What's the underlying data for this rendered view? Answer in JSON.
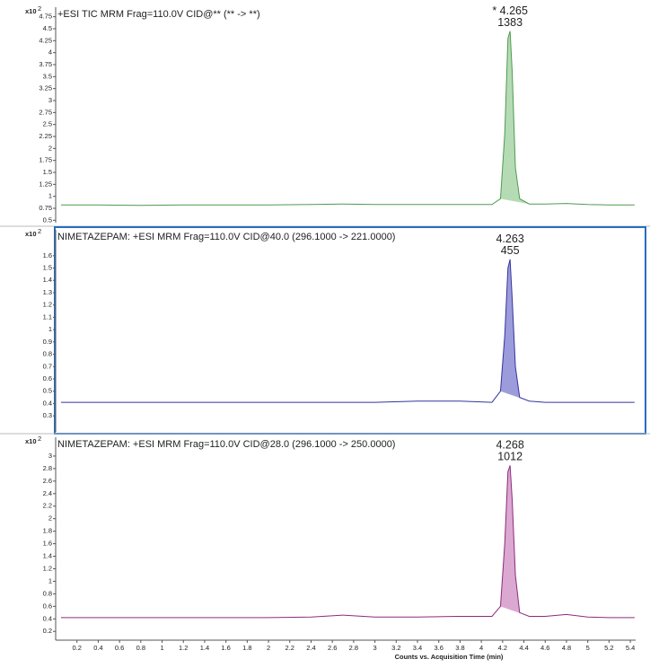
{
  "chart_data": [
    {
      "type": "line",
      "title": "+ESI TIC MRM Frag=110.0V CID@** (** -> **)",
      "y_multiplier": {
        "base": "x10",
        "exponent": "2"
      },
      "x": [
        0.05,
        0.4,
        0.8,
        1.2,
        1.6,
        2.0,
        2.4,
        2.7,
        3.0,
        3.4,
        3.8,
        4.1,
        4.18,
        4.22,
        4.25,
        4.27,
        4.29,
        4.32,
        4.36,
        4.45,
        4.6,
        4.8,
        5.0,
        5.2,
        5.44
      ],
      "series": [
        {
          "color": "#4f9a4f",
          "fill": "#b5dbb5",
          "values": [
            0.82,
            0.82,
            0.81,
            0.82,
            0.82,
            0.82,
            0.83,
            0.84,
            0.83,
            0.83,
            0.83,
            0.83,
            0.95,
            2.3,
            4.3,
            4.45,
            3.6,
            1.6,
            0.95,
            0.84,
            0.84,
            0.85,
            0.83,
            0.82,
            0.82
          ]
        }
      ],
      "xlim": [
        0,
        5.45
      ],
      "ylim": [
        0.45,
        4.95
      ],
      "yticks": [
        0.5,
        0.75,
        1,
        1.25,
        1.5,
        1.75,
        2,
        2.25,
        2.5,
        2.75,
        3,
        3.25,
        3.5,
        3.75,
        4,
        4.25,
        4.5,
        4.75
      ],
      "annotations": [
        "* 4.265",
        "1383"
      ]
    },
    {
      "type": "line",
      "title": "NIMETAZEPAM: +ESI MRM Frag=110.0V CID@40.0 (296.1000 -> 221.0000)",
      "y_multiplier": {
        "base": "x10",
        "exponent": "2"
      },
      "x": [
        0.05,
        0.4,
        0.8,
        1.2,
        1.6,
        2.0,
        2.4,
        2.7,
        3.0,
        3.4,
        3.8,
        4.1,
        4.18,
        4.22,
        4.25,
        4.27,
        4.29,
        4.32,
        4.36,
        4.45,
        4.6,
        4.8,
        5.0,
        5.2,
        5.44
      ],
      "series": [
        {
          "color": "#34349c",
          "fill": "#9c9cdc",
          "values": [
            0.41,
            0.41,
            0.41,
            0.41,
            0.41,
            0.41,
            0.41,
            0.41,
            0.41,
            0.42,
            0.42,
            0.41,
            0.5,
            0.95,
            1.5,
            1.57,
            1.25,
            0.7,
            0.45,
            0.42,
            0.41,
            0.41,
            0.41,
            0.41,
            0.41
          ]
        }
      ],
      "xlim": [
        0,
        5.45
      ],
      "ylim": [
        0.17,
        1.81
      ],
      "yticks": [
        0.3,
        0.4,
        0.5,
        0.6,
        0.7,
        0.8,
        0.9,
        1,
        1.1,
        1.2,
        1.3,
        1.4,
        1.5,
        1.6
      ],
      "selected": true,
      "selection_color": "#2a6cc0",
      "annotations": [
        "4.263",
        "455"
      ]
    },
    {
      "type": "line",
      "title": "NIMETAZEPAM: +ESI MRM Frag=110.0V CID@28.0 (296.1000 -> 250.0000)",
      "y_multiplier": {
        "base": "x10",
        "exponent": "2"
      },
      "x": [
        0.05,
        0.4,
        0.8,
        1.2,
        1.6,
        2.0,
        2.4,
        2.7,
        3.0,
        3.4,
        3.8,
        4.1,
        4.18,
        4.22,
        4.25,
        4.27,
        4.29,
        4.32,
        4.36,
        4.45,
        4.6,
        4.8,
        5.0,
        5.2,
        5.44
      ],
      "series": [
        {
          "color": "#8a2c7c",
          "fill": "#dba8d2",
          "values": [
            0.42,
            0.42,
            0.42,
            0.42,
            0.42,
            0.42,
            0.43,
            0.46,
            0.43,
            0.43,
            0.44,
            0.44,
            0.6,
            1.6,
            2.75,
            2.85,
            2.3,
            1.1,
            0.5,
            0.44,
            0.44,
            0.47,
            0.43,
            0.42,
            0.42
          ]
        }
      ],
      "xlim": [
        0,
        5.45
      ],
      "ylim": [
        0.06,
        3.3
      ],
      "yticks": [
        0.2,
        0.4,
        0.6,
        0.8,
        1,
        1.2,
        1.4,
        1.6,
        1.8,
        2,
        2.2,
        2.4,
        2.6,
        2.8,
        3
      ],
      "xticks": [
        0.2,
        0.4,
        0.6,
        0.8,
        1,
        1.2,
        1.4,
        1.6,
        1.8,
        2,
        2.2,
        2.4,
        2.6,
        2.8,
        3,
        3.2,
        3.4,
        3.6,
        3.8,
        4,
        4.2,
        4.4,
        4.6,
        4.8,
        5,
        5.2,
        5.4
      ],
      "xlabel": "Counts vs. Acquisition Time (min)",
      "annotations": [
        "4.268",
        "1012"
      ]
    }
  ]
}
